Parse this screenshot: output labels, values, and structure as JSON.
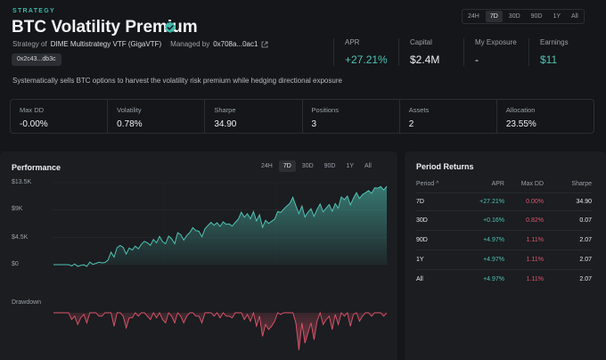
{
  "header": {
    "eyebrow": "STRATEGY",
    "title": "BTC Volatility Premium",
    "strategy_of_label": "Strategy of",
    "strategy_of_value": "DIME Multistrategy VTF (GigaVTF)",
    "managed_by_label": "Managed by",
    "managed_by_value": "0x708a...0ac1",
    "address_chip": "0x2c43...db3c",
    "description": "Systematically sells BTC options to harvest the volatility risk premium while hedging directional exposure"
  },
  "time_ranges": [
    "24H",
    "7D",
    "30D",
    "90D",
    "1Y",
    "All"
  ],
  "selected_range": "7D",
  "kpis": [
    {
      "label": "APR",
      "value": "+27.21%",
      "tone": "green"
    },
    {
      "label": "Capital",
      "value": "$2.4M",
      "tone": "neutral"
    },
    {
      "label": "My Exposure",
      "value": "-",
      "tone": "neutral"
    },
    {
      "label": "Earnings",
      "value": "$11",
      "tone": "green"
    }
  ],
  "metrics": [
    {
      "label": "Max DD",
      "value": "-0.00%"
    },
    {
      "label": "Volatility",
      "value": "0.78%"
    },
    {
      "label": "Sharpe",
      "value": "34.90"
    },
    {
      "label": "Positions",
      "value": "3"
    },
    {
      "label": "Assets",
      "value": "2"
    },
    {
      "label": "Allocation",
      "value": "23.55%"
    }
  ],
  "performance": {
    "title": "Performance",
    "drawdown_label": "Drawdown",
    "y_tick_labels": [
      "$13.5K",
      "$9K",
      "$4.5K",
      "$0"
    ],
    "colors": {
      "line": "#4fc3b3",
      "drawdown": "#e0556a"
    }
  },
  "period_returns": {
    "title": "Period Returns",
    "columns": [
      "Period ^",
      "APR",
      "Max DD",
      "Sharpe"
    ],
    "rows": [
      {
        "period": "7D",
        "apr": "+27.21%",
        "max_dd": "0.00%",
        "sharpe": "34.90"
      },
      {
        "period": "30D",
        "apr": "+0.16%",
        "max_dd": "0.82%",
        "sharpe": "0.07"
      },
      {
        "period": "90D",
        "apr": "+4.97%",
        "max_dd": "1.11%",
        "sharpe": "2.07"
      },
      {
        "period": "1Y",
        "apr": "+4.97%",
        "max_dd": "1.11%",
        "sharpe": "2.07"
      },
      {
        "period": "All",
        "apr": "+4.97%",
        "max_dd": "1.11%",
        "sharpe": "2.07"
      }
    ]
  },
  "chart_data": {
    "type": "area",
    "title": "Performance",
    "y_unit": "$",
    "ylim": [
      0,
      13500
    ],
    "y_ticks": [
      0,
      4500,
      9000,
      13500
    ],
    "values": [
      0,
      0,
      0,
      0,
      0,
      0,
      -200,
      120,
      -300,
      -120,
      -30,
      -300,
      420,
      50,
      200,
      400,
      300,
      350,
      750,
      2050,
      1250,
      2800,
      3150,
      2850,
      1750,
      2750,
      2400,
      3050,
      2600,
      3350,
      3850,
      3600,
      3200,
      4150,
      3600,
      4650,
      3800,
      3450,
      4700,
      4250,
      3450,
      5250,
      4950,
      4050,
      4800,
      5300,
      6100,
      5600,
      5500,
      4600,
      5900,
      6450,
      6950,
      6500,
      6900,
      6300,
      7050,
      6650,
      6700,
      6350,
      6950,
      7500,
      8650,
      7800,
      8400,
      7550,
      8750,
      7200,
      8200,
      6150,
      7300,
      6800,
      7150,
      7500,
      8750,
      8600,
      9150,
      9650,
      10100,
      11100,
      9700,
      8400,
      9650,
      7850,
      8650,
      9200,
      7950,
      9100,
      10000,
      8700,
      9300,
      9900,
      8800,
      10050,
      9300,
      11150,
      10700,
      11300,
      9850,
      10950,
      11850,
      10900,
      11550,
      11850,
      12200,
      11750,
      12650,
      12600,
      12850,
      12300,
      12900
    ],
    "drawdown": [
      0,
      0,
      0,
      0,
      0,
      0,
      -0.2,
      -0.1,
      -0.35,
      -0.15,
      -0.05,
      -0.3,
      0,
      0,
      0,
      -0.1,
      -0.1,
      0,
      0,
      0,
      -0.4,
      0,
      0,
      -0.1,
      -0.45,
      -0.15,
      -0.15,
      0,
      -0.1,
      0,
      0,
      -0.1,
      -0.2,
      0,
      -0.15,
      0,
      -0.2,
      -0.3,
      0,
      -0.1,
      -0.3,
      0,
      -0.1,
      -0.3,
      -0.1,
      0,
      0,
      -0.1,
      -0.1,
      -0.3,
      0,
      0,
      0,
      -0.1,
      0,
      -0.15,
      0,
      -0.1,
      -0.1,
      -0.15,
      0,
      0,
      0,
      -0.2,
      -0.05,
      -0.25,
      0,
      -0.4,
      -0.1,
      -0.7,
      -0.35,
      -0.5,
      -0.4,
      -0.25,
      0,
      -0.05,
      0,
      0,
      0,
      0,
      -0.3,
      -1.11,
      -0.3,
      -0.9,
      -0.6,
      -0.3,
      -0.8,
      -0.25,
      0,
      -0.35,
      -0.2,
      -0.1,
      -0.5,
      -0.05,
      -0.35,
      0,
      -0.1,
      0,
      -0.4,
      -0.05,
      0,
      -0.25,
      -0.1,
      0,
      0,
      -0.1,
      0,
      0,
      0,
      -0.1,
      0
    ]
  }
}
